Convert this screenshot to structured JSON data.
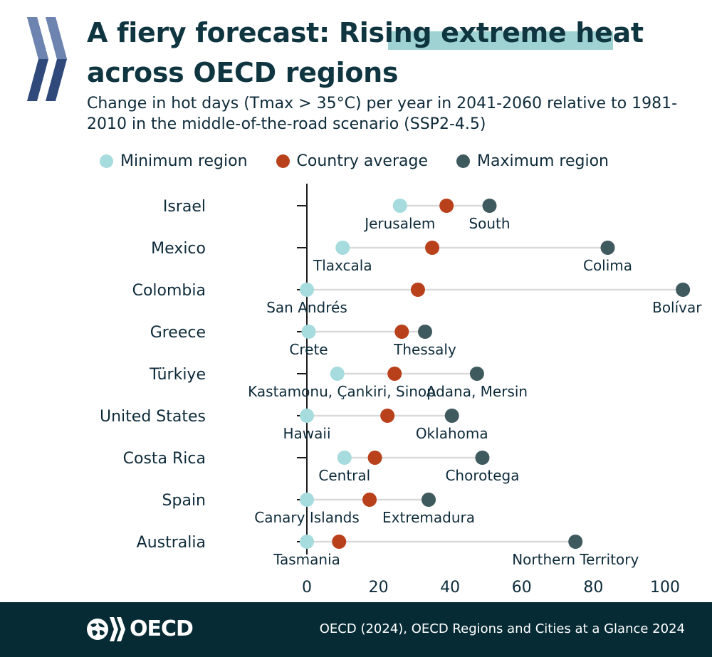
{
  "header": {
    "title": "A fiery forecast: Rising extreme heat across OECD regions",
    "subtitle": "Change in hot days (Tmax > 35°C) per year in 2041-2060 relative to 1981-2010 in the middle-of-the-road scenario (SSP2-4.5)"
  },
  "colors": {
    "min": "#a6dcdd",
    "avg": "#b8401a",
    "max": "#3f5a5e",
    "line": "#d9d9d9",
    "axis": "#1b1b1b"
  },
  "legend": [
    {
      "key": "min",
      "label": "Minimum region"
    },
    {
      "key": "avg",
      "label": "Country average"
    },
    {
      "key": "max",
      "label": "Maximum region"
    }
  ],
  "chart_data": {
    "type": "dumbbell",
    "xlabel": "",
    "ylabel": "",
    "xlim": [
      0,
      100
    ],
    "xticks": [
      0,
      20,
      40,
      60,
      80,
      100
    ],
    "rows": [
      {
        "country": "Israel",
        "min": 26,
        "min_region": "Jerusalem",
        "avg": 39,
        "max": 51,
        "max_region": "South"
      },
      {
        "country": "Mexico",
        "min": 10,
        "min_region": "Tlaxcala",
        "avg": 35,
        "max": 84,
        "max_region": "Colima"
      },
      {
        "country": "Colombia",
        "min": 0,
        "min_region": "San Andrés",
        "avg": 31,
        "max": 105,
        "max_region": "Bolívar"
      },
      {
        "country": "Greece",
        "min": 0.5,
        "min_region": "Crete",
        "avg": 26.5,
        "max": 33,
        "max_region": "Thessaly"
      },
      {
        "country": "Türkiye",
        "min": 8.5,
        "min_region": "Kastamonu, Çankiri, Sinop",
        "avg": 24.5,
        "max": 47.5,
        "max_region": "Adana, Mersin"
      },
      {
        "country": "United States",
        "min": 0,
        "min_region": "Hawaii",
        "avg": 22.5,
        "max": 40.5,
        "max_region": "Oklahoma"
      },
      {
        "country": "Costa Rica",
        "min": 10.5,
        "min_region": "Central",
        "avg": 19,
        "max": 49,
        "max_region": "Chorotega"
      },
      {
        "country": "Spain",
        "min": 0,
        "min_region": "Canary Islands",
        "avg": 17.5,
        "max": 34,
        "max_region": "Extremadura"
      },
      {
        "country": "Australia",
        "min": 0,
        "min_region": "Tasmania",
        "avg": 9,
        "max": 75,
        "max_region": "Northern Territory"
      }
    ]
  },
  "footer": {
    "org": "OECD",
    "source": "OECD (2024), OECD Regions and Cities at a Glance 2024"
  }
}
